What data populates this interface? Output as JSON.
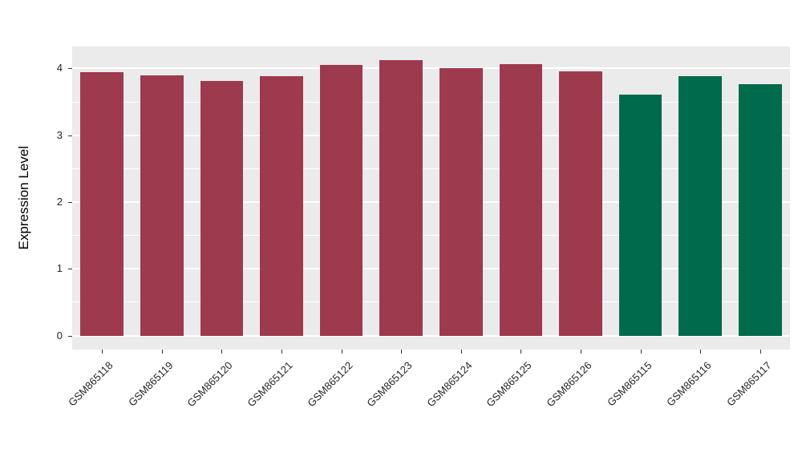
{
  "chart_data": {
    "type": "bar",
    "title": "",
    "xlabel": "",
    "ylabel": "Expression Level",
    "categories": [
      "GSM865118",
      "GSM865119",
      "GSM865120",
      "GSM865121",
      "GSM865122",
      "GSM865123",
      "GSM865124",
      "GSM865125",
      "GSM865126",
      "GSM865115",
      "GSM865116",
      "GSM865117"
    ],
    "values": [
      3.95,
      3.9,
      3.81,
      3.89,
      4.05,
      4.13,
      4.01,
      4.06,
      3.96,
      3.61,
      3.89,
      3.76
    ],
    "groups": [
      "red",
      "red",
      "red",
      "red",
      "red",
      "red",
      "red",
      "red",
      "red",
      "green",
      "green",
      "green"
    ],
    "group_colors": {
      "red": "#9E3A4E",
      "green": "#006B4C"
    },
    "yticks": [
      0,
      1,
      2,
      3,
      4
    ],
    "minor_yticks": [
      0.5,
      1.5,
      2.5,
      3.5
    ],
    "ylim": [
      -0.21,
      4.33
    ],
    "grid": true,
    "legend_position": "none",
    "panel_background": "#EBEBEB",
    "gridline_color": "#FFFFFF",
    "bar_width_ratio": 0.72
  }
}
